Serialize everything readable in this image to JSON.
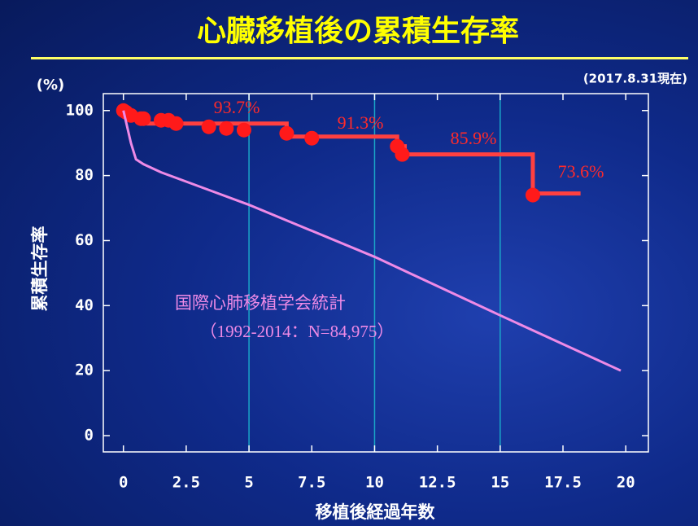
{
  "chart_data": {
    "type": "line",
    "title": "心臓移植後の累積生存率",
    "note": "(2017.8.31現在)",
    "y_unit": "(%)",
    "y_label": "累積生存率",
    "x_label": "移植後経過年数",
    "xlim": [
      -0.8,
      20.9
    ],
    "ylim": [
      -5,
      105.2
    ],
    "xticks": [
      0,
      2.5,
      5,
      7.5,
      10,
      12.5,
      15,
      17.5,
      20
    ],
    "yticks": [
      0,
      20,
      40,
      60,
      80,
      100
    ],
    "grid_x": [
      5,
      10,
      15
    ],
    "grid_color": "#1aa6c8",
    "series": [
      {
        "style": "line",
        "color": "#ff4040",
        "x": [
          0,
          0.3,
          1,
          1,
          6.5,
          6.5,
          10.9,
          10.9,
          11.2,
          11.2,
          16.3,
          16.3,
          18.2
        ],
        "values": [
          100,
          97.5,
          97.5,
          96,
          96,
          92,
          92,
          89,
          89,
          86.5,
          86.5,
          74.5,
          74.5
        ]
      },
      {
        "style": "points",
        "color": "#ff1a1a",
        "x": [
          0,
          0.1,
          0.3,
          0.7,
          0.8,
          1.5,
          1.8,
          2.1,
          3.4,
          4.1,
          4.8,
          6.5,
          7.5,
          10.9,
          11.1,
          16.3
        ],
        "values": [
          100,
          99.5,
          98.5,
          97.5,
          97.5,
          97,
          97,
          96,
          95,
          94.5,
          94,
          93,
          91.5,
          89,
          86.5,
          74
        ]
      },
      {
        "style": "line",
        "name": "国際心肺移植学会統計",
        "color": "#ee8ae6",
        "x": [
          0,
          0.3,
          0.5,
          0.8,
          1.5,
          5,
          10,
          15,
          19.8
        ],
        "values": [
          100,
          90,
          85,
          83.5,
          81,
          71,
          55,
          37,
          20
        ]
      }
    ],
    "annotations": [
      "93.7%",
      "91.3%",
      "85.9%",
      "73.6%"
    ],
    "source_note": "（1992-2014：N=84,975）"
  }
}
